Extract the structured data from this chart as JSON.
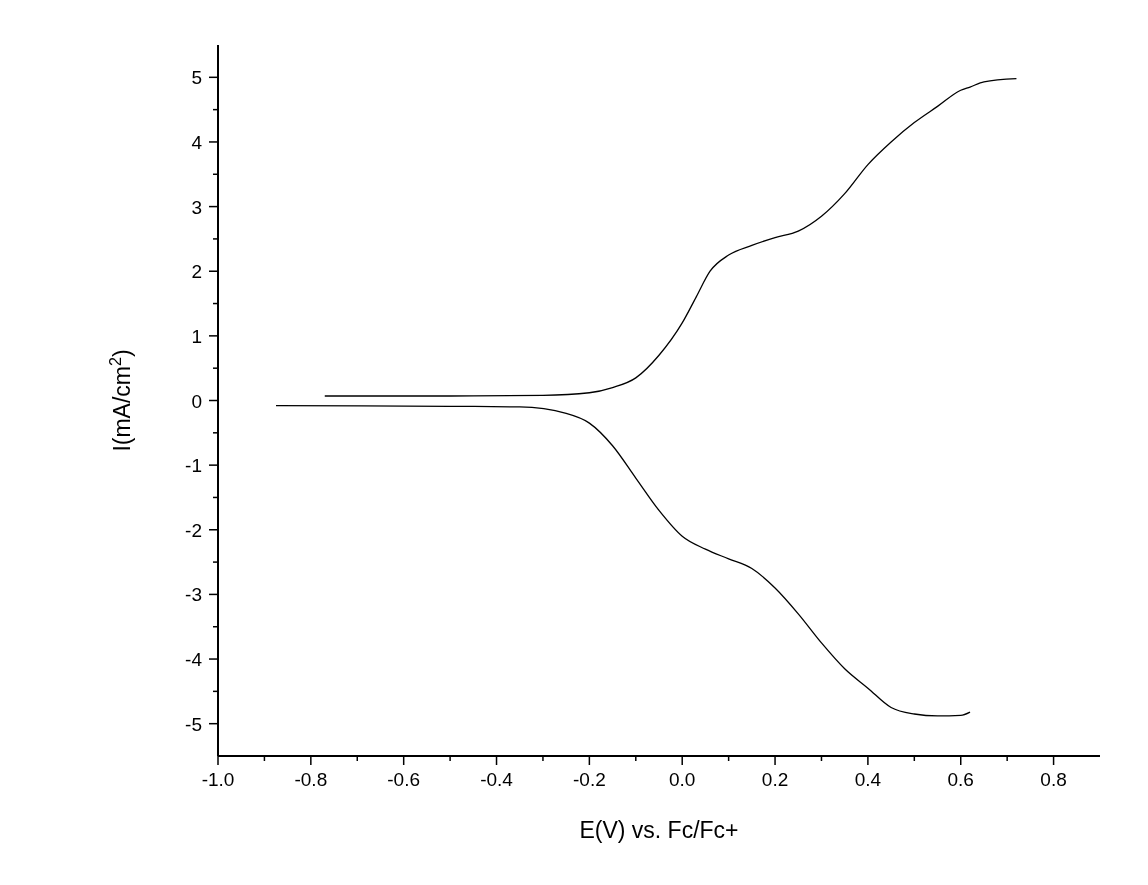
{
  "chart_data": {
    "type": "line",
    "xlabel": "E(V) vs. Fc/Fc+",
    "ylabel": "I(mA/cm$^{2}$)",
    "xlim": [
      -1.0,
      0.9
    ],
    "ylim": [
      -5.5,
      5.5
    ],
    "xticks": [
      {
        "value": -1.0,
        "label": "-1.0"
      },
      {
        "value": -0.9,
        "label": null
      },
      {
        "value": -0.8,
        "label": "-0.8"
      },
      {
        "value": -0.7,
        "label": null
      },
      {
        "value": -0.6,
        "label": "-0.6"
      },
      {
        "value": -0.5,
        "label": null
      },
      {
        "value": -0.4,
        "label": "-0.4"
      },
      {
        "value": -0.3,
        "label": null
      },
      {
        "value": -0.2,
        "label": "-0.2"
      },
      {
        "value": -0.1,
        "label": null
      },
      {
        "value": 0,
        "label": "0.0"
      },
      {
        "value": 0.1,
        "label": null
      },
      {
        "value": 0.2,
        "label": "0.2"
      },
      {
        "value": 0.3,
        "label": null
      },
      {
        "value": 0.4,
        "label": "0.4"
      },
      {
        "value": 0.5,
        "label": null
      },
      {
        "value": 0.6,
        "label": "0.6"
      },
      {
        "value": 0.7,
        "label": null
      },
      {
        "value": 0.8,
        "label": "0.8"
      }
    ],
    "yticks": [
      -5,
      {
        "value": -4.5,
        "label": null
      },
      -4,
      {
        "value": -3.5,
        "label": null
      },
      -3,
      {
        "value": -2.5,
        "label": null
      },
      -2,
      {
        "value": -1.5,
        "label": null
      },
      -1,
      {
        "value": -0.5,
        "label": null
      },
      0,
      {
        "value": 0.5,
        "label": null
      },
      1,
      {
        "value": 1.5,
        "label": null
      },
      2,
      {
        "value": 2.5,
        "label": null
      },
      3,
      {
        "value": 3.5,
        "label": null
      },
      4,
      {
        "value": 4.5,
        "label": null
      },
      5
    ],
    "grid": false,
    "marker": "none",
    "line_style": "solid",
    "series": [
      {
        "color": "#000000",
        "x": [
          -0.77,
          -0.5,
          -0.3,
          -0.2,
          -0.15,
          -0.1,
          -0.05,
          0,
          0.03,
          0.06,
          0.1,
          0.15,
          0.2,
          0.25,
          0.3,
          0.35,
          0.4,
          0.45,
          0.5,
          0.55,
          0.6,
          0.62,
          0.65,
          0.72
        ],
        "values": [
          0.07,
          0.07,
          0.08,
          0.12,
          0.2,
          0.35,
          0.7,
          1.2,
          1.6,
          2.0,
          2.25,
          2.4,
          2.52,
          2.62,
          2.85,
          3.2,
          3.65,
          4.0,
          4.3,
          4.55,
          4.8,
          4.85,
          4.93,
          4.98
        ]
      },
      {
        "color": "#000000",
        "x": [
          -0.875,
          -0.5,
          -0.35,
          -0.25,
          -0.2,
          -0.15,
          -0.1,
          -0.05,
          0,
          0.05,
          0.1,
          0.15,
          0.2,
          0.25,
          0.3,
          0.35,
          0.4,
          0.45,
          0.5,
          0.55,
          0.6,
          0.62
        ],
        "values": [
          -0.08,
          -0.09,
          -0.1,
          -0.2,
          -0.35,
          -0.7,
          -1.2,
          -1.7,
          -2.1,
          -2.3,
          -2.45,
          -2.6,
          -2.9,
          -3.3,
          -3.75,
          -4.15,
          -4.45,
          -4.75,
          -4.85,
          -4.88,
          -4.87,
          -4.82
        ]
      }
    ]
  }
}
